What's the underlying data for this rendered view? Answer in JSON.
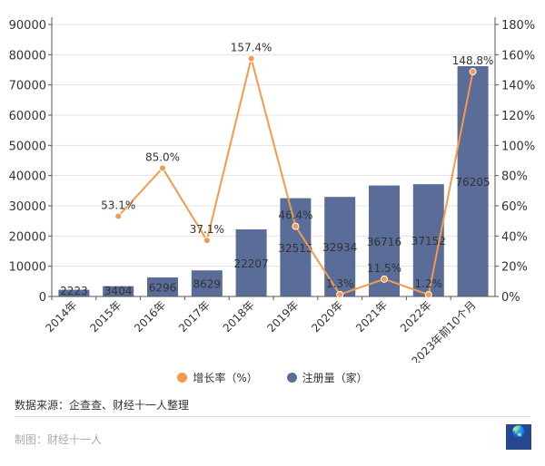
{
  "chart_data": {
    "type": "bar+line",
    "categories": [
      "2014年",
      "2015年",
      "2016年",
      "2017年",
      "2018年",
      "2019年",
      "2020年",
      "2021年",
      "2022年",
      "2023年前10个月"
    ],
    "series": [
      {
        "name": "注册量（家）",
        "type": "bar",
        "axis": "left",
        "color": "#5a6c98",
        "values": [
          2223,
          3404,
          6296,
          8629,
          22207,
          32515,
          32934,
          36716,
          37152,
          76205
        ],
        "labels": [
          "2223",
          "3404",
          "6296",
          "8629",
          "22207",
          "32515",
          "32934",
          "36716",
          "37152",
          "76205"
        ]
      },
      {
        "name": "增长率（%）",
        "type": "line",
        "axis": "right",
        "color": "#f59a4c",
        "values": [
          null,
          53.1,
          85.0,
          37.1,
          157.4,
          46.4,
          1.3,
          11.5,
          1.2,
          148.8
        ],
        "labels": [
          "",
          "53.1%",
          "85.0%",
          "37.1%",
          "157.4%",
          "46.4%",
          "1.3%",
          "11.5%",
          "1.2%",
          "148.8%"
        ]
      }
    ],
    "y_left": {
      "range": [
        0,
        90000
      ],
      "ticks": [
        "0",
        "10000",
        "20000",
        "30000",
        "40000",
        "50000",
        "60000",
        "70000",
        "80000",
        "90000"
      ]
    },
    "y_right": {
      "range": [
        0,
        180
      ],
      "ticks": [
        "0%",
        "20%",
        "40%",
        "60%",
        "80%",
        "100%",
        "120%",
        "140%",
        "160%",
        "180%"
      ]
    },
    "grid": true,
    "legend_position": "bottom"
  },
  "legend": {
    "growth": "增长率（%）",
    "count": "注册量（家）"
  },
  "footer": {
    "source": "数据来源：企查查、财经十一人整理",
    "credit": "制图：财经十一人",
    "logo_text": "财经十一人"
  }
}
